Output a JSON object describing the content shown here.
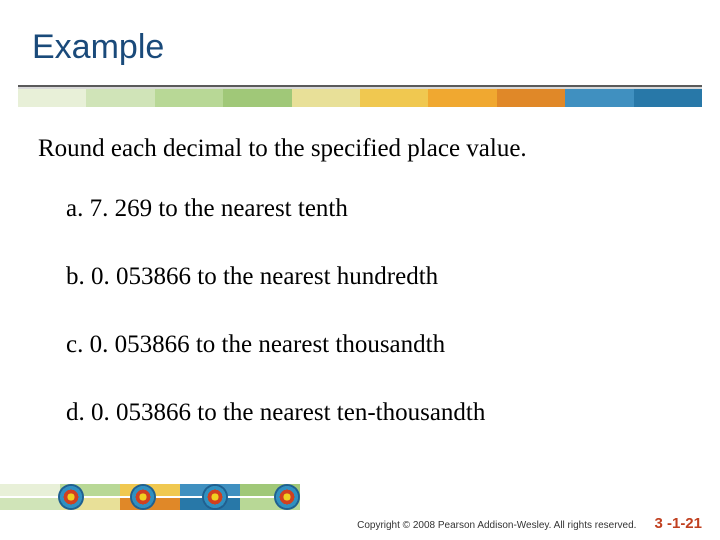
{
  "title": "Example",
  "intro": "Round each decimal to the specified place value.",
  "items": [
    "a.  7. 269 to the nearest tenth",
    "b.  0. 053866 to the nearest hundredth",
    "c.  0. 053866 to the nearest thousandth",
    "d.  0. 053866 to the nearest ten-thousandth"
  ],
  "copyright": "Copyright © 2008 Pearson Addison-Wesley. All rights reserved.",
  "page_number": "3 -1-21"
}
